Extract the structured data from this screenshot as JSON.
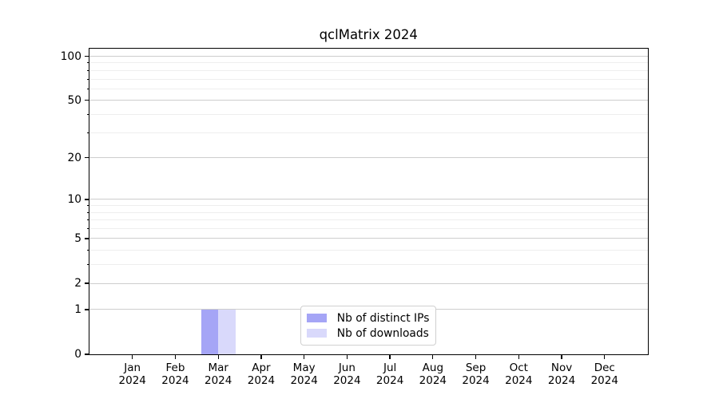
{
  "figure": {
    "title": "qclMatrix 2024",
    "background": "#ffffff"
  },
  "chart_data": {
    "type": "bar",
    "title": "qclMatrix 2024",
    "x_months": [
      "Jan",
      "Feb",
      "Mar",
      "Apr",
      "May",
      "Jun",
      "Jul",
      "Aug",
      "Sep",
      "Oct",
      "Nov",
      "Dec"
    ],
    "x_year": "2024",
    "series": [
      {
        "name": "Nb of distinct IPs",
        "color": "#a5a5f6",
        "values": [
          0,
          0,
          1,
          0,
          0,
          0,
          0,
          0,
          0,
          0,
          0,
          0
        ]
      },
      {
        "name": "Nb of downloads",
        "color": "#d9d9fb",
        "values": [
          0,
          0,
          1,
          0,
          0,
          0,
          0,
          0,
          0,
          0,
          0,
          0
        ]
      }
    ],
    "y_scale": "log1p",
    "y_axis": {
      "major_ticks": [
        0,
        1,
        2,
        5,
        10,
        20,
        50,
        100
      ],
      "minor_ticks": [
        3,
        4,
        6,
        7,
        8,
        9,
        30,
        40,
        60,
        70,
        80,
        90
      ],
      "ylim": [
        0,
        112.6
      ]
    },
    "x_axis": {
      "slots": 13,
      "bar_month_index": 2
    },
    "grid": {
      "major_color": "#cdcdcd",
      "minor_color": "#eeeeee"
    },
    "legend": {
      "position": "lower center"
    },
    "axis_color": "#000000"
  }
}
